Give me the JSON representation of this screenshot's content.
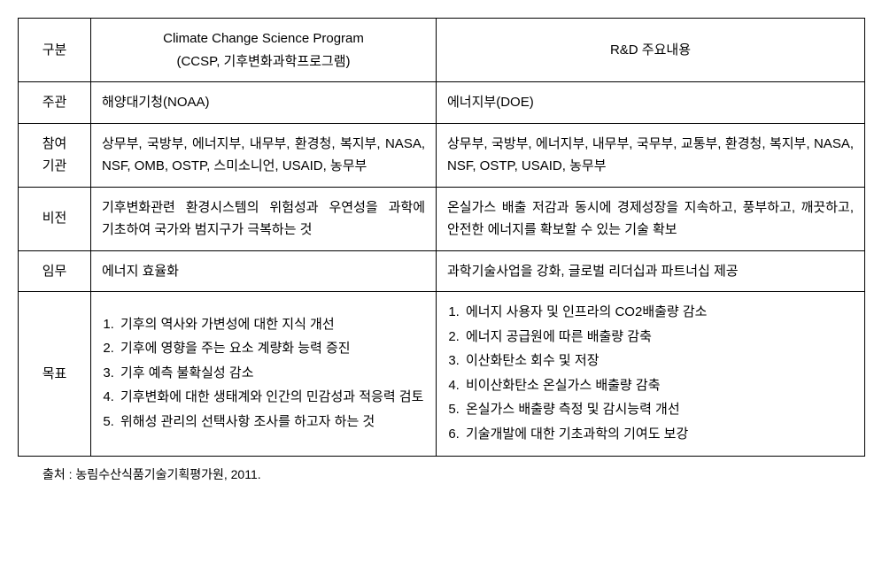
{
  "headers": {
    "category": "구분",
    "ccsp": "Climate Change Science Program\n(CCSP, 기후변화과학프로그램)",
    "rnd": "R&D 주요내용"
  },
  "rows": [
    {
      "label": "주관",
      "ccsp": "해양대기청(NOAA)",
      "rnd": "에너지부(DOE)"
    },
    {
      "label": "참여\n기관",
      "ccsp": "상무부, 국방부, 에너지부, 내무부, 환경청, 복지부, NASA, NSF, OMB, OSTP, 스미소니언, USAID, 농무부",
      "rnd": "상무부, 국방부, 에너지부, 내무부, 국무부, 교통부, 환경청, 복지부, NASA, NSF, OSTP, USAID, 농무부"
    },
    {
      "label": "비전",
      "ccsp": "기후변화관련 환경시스템의 위험성과 우연성을 과학에 기초하여 국가와 범지구가 극복하는 것",
      "rnd": "온실가스 배출 저감과 동시에 경제성장을 지속하고, 풍부하고, 깨끗하고, 안전한 에너지를 확보할 수 있는 기술 확보"
    },
    {
      "label": "임무",
      "ccsp": "에너지 효율화",
      "rnd": "과학기술사업을 강화, 글로벌 리더십과 파트너십 제공"
    }
  ],
  "goals": {
    "label": "목표",
    "ccsp": [
      "기후의 역사와 가변성에 대한 지식 개선",
      "기후에 영향을 주는 요소 계량화 능력 증진",
      "기후 예측 불확실성 감소",
      "기후변화에 대한 생태계와 인간의 민감성과 적응력 검토",
      "위해성 관리의 선택사항 조사를 하고자 하는 것"
    ],
    "rnd": [
      "에너지 사용자 및 인프라의 CO2배출량 감소",
      "에너지 공급원에 따른 배출량 감축",
      "이산화탄소 회수 및 저장",
      "비이산화탄소 온실가스 배출량 감축",
      "온실가스 배출량 측정 및 감시능력 개선",
      "기술개발에 대한 기초과학의 기여도 보강"
    ]
  },
  "source": "출처 : 농림수산식품기술기획평가원, 2011."
}
